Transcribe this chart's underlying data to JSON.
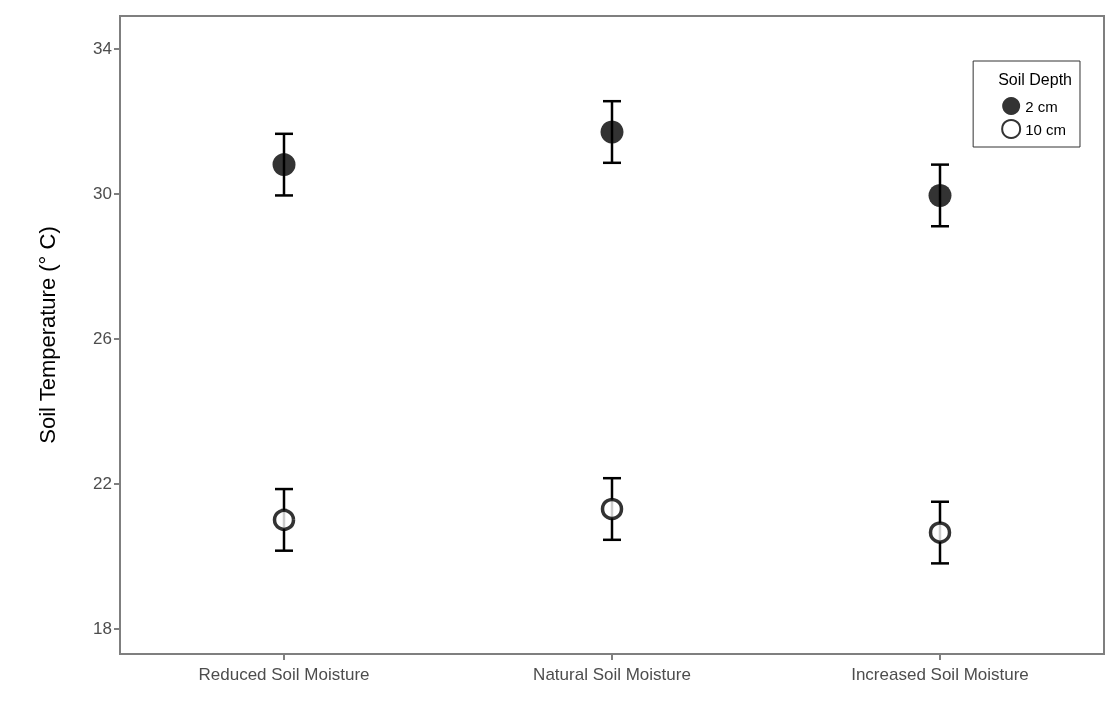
{
  "chart_data": {
    "type": "scatter",
    "ylabel": "Soil Temperature (° C)",
    "legend_title": "Soil Depth",
    "categories": [
      "Reduced Soil Moisture",
      "Natural Soil Moisture",
      "Increased Soil Moisture"
    ],
    "series": [
      {
        "name": "2 cm",
        "color": "#000000",
        "values": [
          30.8,
          31.7,
          29.95
        ],
        "errors": [
          0.85,
          0.85,
          0.85
        ]
      },
      {
        "name": "10 cm",
        "color": "#000000",
        "values": [
          21.0,
          21.3,
          20.65
        ],
        "errors": [
          0.85,
          0.85,
          0.85
        ]
      }
    ],
    "ylim": [
      17.3,
      34.9
    ],
    "yticks": [
      18,
      22,
      26,
      30,
      34
    ],
    "grid": false,
    "legend": "top right",
    "marker": "circle"
  }
}
